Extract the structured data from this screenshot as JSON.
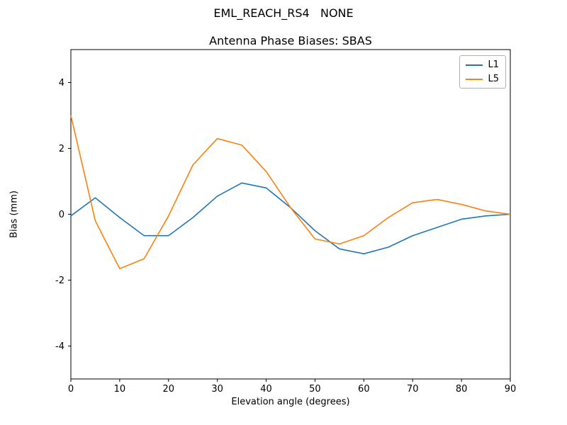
{
  "figure": {
    "suptitle": "EML_REACH_RS4   NONE"
  },
  "chart_data": {
    "type": "line",
    "title": "Antenna Phase Biases: SBAS",
    "xlabel": "Elevation angle (degrees)",
    "ylabel": "Bias (mm)",
    "xlim": [
      0,
      90
    ],
    "ylim": [
      -5,
      5
    ],
    "xticks": [
      0,
      10,
      20,
      30,
      40,
      50,
      60,
      70,
      80,
      90
    ],
    "yticks": [
      -4,
      -2,
      0,
      2,
      4
    ],
    "grid": false,
    "legend_position": "upper right",
    "x": [
      0,
      5,
      10,
      15,
      20,
      25,
      30,
      35,
      40,
      45,
      50,
      55,
      60,
      65,
      70,
      75,
      80,
      85,
      90
    ],
    "series": [
      {
        "name": "L1",
        "color": "#1f77b4",
        "values": [
          -0.05,
          0.5,
          -0.1,
          -0.65,
          -0.65,
          -0.1,
          0.55,
          0.95,
          0.8,
          0.2,
          -0.5,
          -1.05,
          -1.2,
          -1.0,
          -0.65,
          -0.4,
          -0.15,
          -0.05,
          0.0
        ]
      },
      {
        "name": "L5",
        "color": "#ff7f0e",
        "values": [
          3.0,
          -0.2,
          -1.65,
          -1.35,
          -0.05,
          1.5,
          2.3,
          2.1,
          1.3,
          0.2,
          -0.75,
          -0.9,
          -0.65,
          -0.1,
          0.35,
          0.45,
          0.3,
          0.1,
          0.0
        ]
      }
    ]
  }
}
